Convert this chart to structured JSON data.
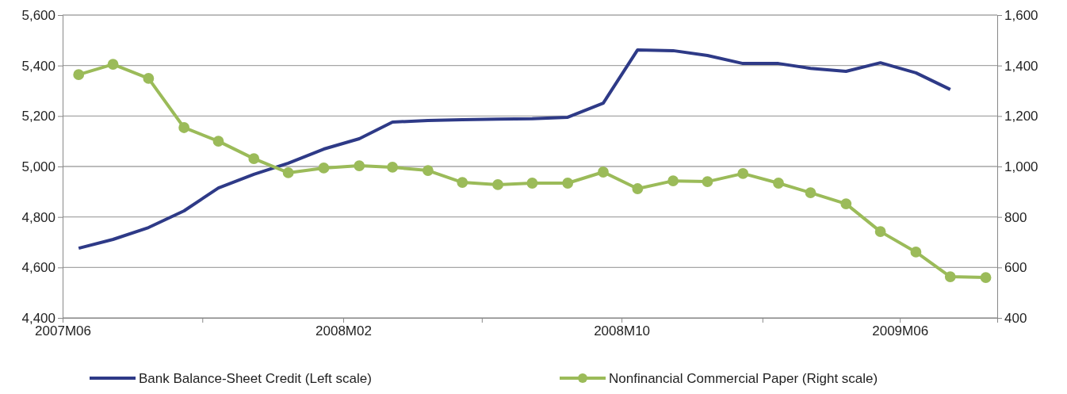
{
  "chart_data": {
    "type": "line",
    "x": [
      "2007-06-15",
      "2007-07-15",
      "2007-08-15",
      "2007-09-15",
      "2007-10-15",
      "2007-11-15",
      "2007-12-15",
      "2008-01-15",
      "2008-02-15",
      "2008-03-15",
      "2008-04-15",
      "2008-05-15",
      "2008-06-15",
      "2008-07-15",
      "2008-08-15",
      "2008-09-15",
      "2008-10-15",
      "2008-11-15",
      "2008-12-15",
      "2009-01-15",
      "2009-02-15",
      "2009-03-15",
      "2009-04-15",
      "2009-05-15",
      "2009-06-15",
      "2009-07-15",
      "2009-08-15"
    ],
    "xlim": [
      "2007-06-01",
      "2009-08-25"
    ],
    "xticks": [
      {
        "value": "2007-06-01",
        "label": "2007M06"
      },
      {
        "value": "2007-10-01",
        "label": null
      },
      {
        "value": "2008-02-01",
        "label": "2008M02"
      },
      {
        "value": "2008-06-01",
        "label": null
      },
      {
        "value": "2008-10-01",
        "label": "2008M10"
      },
      {
        "value": "2009-02-01",
        "label": null
      },
      {
        "value": "2009-06-01",
        "label": "2009M06"
      }
    ],
    "ylim": [
      4400,
      5600
    ],
    "yticks": [
      {
        "value": 4400,
        "label": "4,400"
      },
      {
        "value": 4600,
        "label": "4,600"
      },
      {
        "value": 4800,
        "label": "4,800"
      },
      {
        "value": 5000,
        "label": "5,000"
      },
      {
        "value": 5200,
        "label": "5,200"
      },
      {
        "value": 5400,
        "label": "5,400"
      },
      {
        "value": 5600,
        "label": "5,600"
      }
    ],
    "y2lim": [
      400,
      1600
    ],
    "y2ticks": [
      400,
      600,
      800,
      {
        "value": 1000,
        "label": "1,000"
      },
      {
        "value": 1200,
        "label": "1,200"
      },
      {
        "value": 1400,
        "label": "1,400"
      },
      {
        "value": 1600,
        "label": "1,600"
      }
    ],
    "grid": "y",
    "legend": "bottom",
    "series": [
      {
        "name": "Bank Balance-Sheet Credit (Left scale)",
        "color": "#2e3a87",
        "marker": "none",
        "values": [
          4676,
          4711,
          4758,
          4824,
          4915,
          4969,
          5013,
          5069,
          5110,
          5176,
          5182,
          5185,
          5188,
          5189,
          5195,
          5251,
          5462,
          5459,
          5440,
          5408,
          5408,
          5389,
          5377,
          5411,
          5371,
          5305,
          null
        ]
      },
      {
        "name": "Nonfinancial Commercial Paper (Right scale)",
        "color": "#9bbb59",
        "marker": "circle",
        "axis": "y2",
        "values": [
          1364,
          1405,
          1349,
          1154,
          1100,
          1031,
          975,
          994,
          1003,
          997,
          984,
          937,
          928,
          934,
          934,
          978,
          912,
          943,
          940,
          972,
          934,
          896,
          852,
          742,
          661,
          563,
          560
        ]
      }
    ]
  }
}
